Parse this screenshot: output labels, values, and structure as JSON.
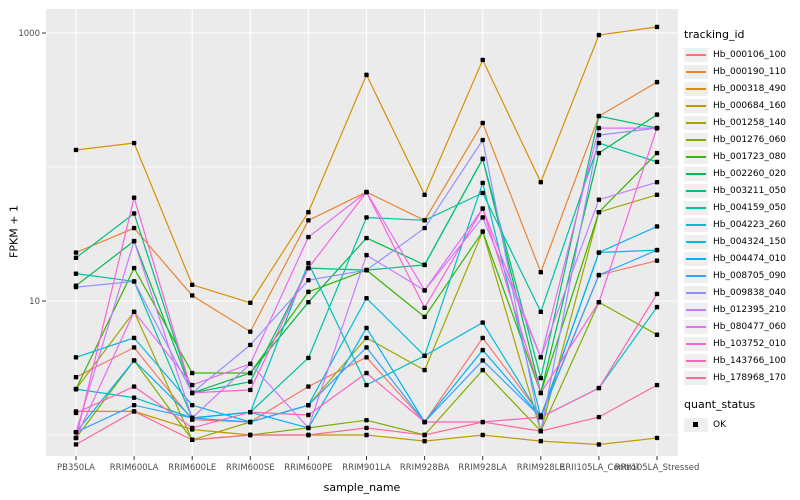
{
  "chart_data": {
    "type": "line",
    "title": "",
    "xlabel": "sample_name",
    "ylabel": "FPKM + 1",
    "y_scale": "log10",
    "y_tick_values": [
      1000,
      10
    ],
    "y_tick_labels": [
      "1000",
      "10"
    ],
    "y_gridline_values": [
      1000,
      100,
      10,
      1
    ],
    "ylim": [
      0.75,
      1500
    ],
    "grid": "on",
    "panel_background": "#ebebeb",
    "gridline_color": "#ffffff",
    "tick_text_color": "#4d4d4d",
    "point_style": {
      "shape": "square",
      "color": "#000000"
    },
    "legend": {
      "position": "right",
      "color_title": "tracking_id",
      "shape_title": "quant_status",
      "shape_items": [
        {
          "label": "OK"
        }
      ]
    },
    "categories": [
      "PB350LA",
      "RRIM600LA",
      "RRIM600LE",
      "RRIM600SE",
      "RRIM600PE",
      "RRIM901LA",
      "RRIM928BA",
      "RRIM928LA",
      "RRIM928LE",
      "RRII105LA_Control",
      "RRII105LA_Stressed"
    ],
    "series": [
      {
        "name": "Hb_000106_100",
        "color": "#F8766D",
        "values": [
          2.7,
          4.5,
          1.3,
          1.25,
          2.3,
          3.8,
          1.25,
          5.3,
          1.4,
          15.6,
          20
        ]
      },
      {
        "name": "Hb_000190_110",
        "color": "#EA8331",
        "values": [
          23,
          35,
          11,
          5.9,
          40,
          65,
          40,
          213,
          16.4,
          240,
          430
        ]
      },
      {
        "name": "Hb_000318_490",
        "color": "#D89000",
        "values": [
          134,
          151,
          13.2,
          9.7,
          46,
          487,
          62,
          630,
          77,
          966,
          1109
        ]
      },
      {
        "name": "Hb_000684_160",
        "color": "#C09B00",
        "values": [
          1.5,
          1.5,
          1.1,
          1.0,
          1.0,
          1.0,
          0.9,
          1.0,
          0.9,
          0.85,
          0.95
        ]
      },
      {
        "name": "Hb_001258_140",
        "color": "#A3A500",
        "values": [
          2.2,
          8.3,
          0.92,
          1.25,
          1.67,
          5.3,
          3.05,
          33,
          1.07,
          46,
          62
        ]
      },
      {
        "name": "Hb_001276_060",
        "color": "#7CAE00",
        "values": [
          0.95,
          3.6,
          0.92,
          1.0,
          1.13,
          1.29,
          1.0,
          3.05,
          1.07,
          9.8,
          5.6
        ]
      },
      {
        "name": "Hb_001723_080",
        "color": "#39B600",
        "values": [
          2.2,
          17.6,
          2.9,
          2.9,
          11.7,
          17,
          7.6,
          33,
          2.06,
          46,
          127
        ]
      },
      {
        "name": "Hb_002260_020",
        "color": "#00BB4E",
        "values": [
          13,
          28,
          2.06,
          2.9,
          9.8,
          29.5,
          18.6,
          115,
          2.06,
          127,
          246
        ]
      },
      {
        "name": "Hb_003211_050",
        "color": "#00BF7D",
        "values": [
          21,
          45,
          2.06,
          2.5,
          17.6,
          17,
          18.6,
          115,
          2.66,
          240,
          195
        ]
      },
      {
        "name": "Hb_004159_050",
        "color": "#00C1A3",
        "values": [
          16,
          14,
          1.34,
          1.48,
          3.76,
          42,
          40,
          64,
          8.3,
          151,
          109
        ]
      },
      {
        "name": "Hb_004223_260",
        "color": "#00BFC4",
        "values": [
          2.2,
          1.9,
          1.34,
          1.48,
          19.2,
          2.36,
          3.9,
          76,
          1.36,
          2.24,
          9.0
        ]
      },
      {
        "name": "Hb_004324_150",
        "color": "#00BAE0",
        "values": [
          3.8,
          5.3,
          1.67,
          1.25,
          1.67,
          10.5,
          3.9,
          6.9,
          1.36,
          23,
          24
        ]
      },
      {
        "name": "Hb_004474_010",
        "color": "#00B0F6",
        "values": [
          1.05,
          3.6,
          1.34,
          1.48,
          1.13,
          6.3,
          1.25,
          4.3,
          1.36,
          23,
          36
        ]
      },
      {
        "name": "Hb_008705_090",
        "color": "#35A2FF",
        "values": [
          1.05,
          1.67,
          1.34,
          1.25,
          1.67,
          4.5,
          1.25,
          3.6,
          1.36,
          15.6,
          24
        ]
      },
      {
        "name": "Hb_009838_040",
        "color": "#9590FF",
        "values": [
          12.7,
          14,
          2.06,
          4.7,
          14.3,
          17,
          35,
          159,
          1.07,
          173,
          195
        ]
      },
      {
        "name": "Hb_012395_210",
        "color": "#C77CFF",
        "values": [
          1.05,
          28,
          1.34,
          3.4,
          1.13,
          22,
          12,
          42,
          3.8,
          57,
          77
        ]
      },
      {
        "name": "Hb_080477_060",
        "color": "#E76BF3",
        "values": [
          0.95,
          8.3,
          2.36,
          3.4,
          30,
          65,
          12,
          49,
          3.8,
          195,
          195
        ]
      },
      {
        "name": "Hb_103752_010",
        "color": "#FA62DB",
        "values": [
          0.95,
          59,
          2.06,
          2.17,
          17.6,
          65,
          8.9,
          49,
          2.06,
          9.8,
          195
        ]
      },
      {
        "name": "Hb_143766_100",
        "color": "#FF62BC",
        "values": [
          1.46,
          2.3,
          1.13,
          1.48,
          1.41,
          2.9,
          1.25,
          1.25,
          1.36,
          2.24,
          11.3
        ]
      },
      {
        "name": "Hb_178968_170",
        "color": "#FF6A98",
        "values": [
          0.85,
          1.5,
          0.92,
          1.0,
          1.0,
          1.13,
          1.0,
          1.25,
          1.07,
          1.36,
          2.36
        ]
      }
    ]
  }
}
